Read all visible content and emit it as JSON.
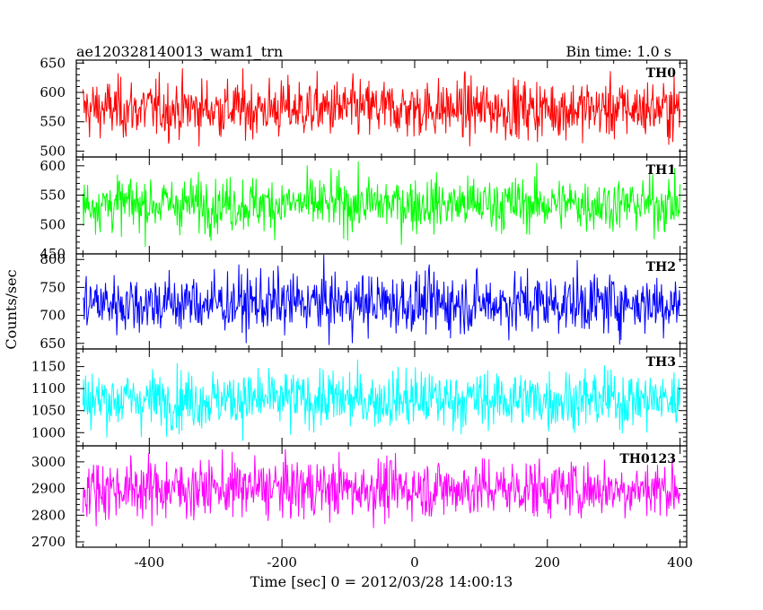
{
  "header": {
    "title": "ae120328140013_wam1_trn",
    "bin_time": "Bin time: 1.0 s"
  },
  "chart_data": {
    "type": "line",
    "xlabel": "Time [sec] 0 = 2012/03/28 14:00:13",
    "ylabel": "Counts/sec",
    "xlim": [
      -510,
      410
    ],
    "x_data_range": [
      -500,
      400
    ],
    "bin_time_s": 1.0,
    "xticks": [
      -400,
      -200,
      0,
      200,
      400
    ],
    "panels": [
      {
        "name": "TH0",
        "color": "#ff0000",
        "ylim": [
          490,
          655
        ],
        "yticks": [
          500,
          550,
          600,
          650
        ],
        "mean": 572,
        "noise_sd": 25,
        "approx_range": [
          500,
          655
        ]
      },
      {
        "name": "TH1",
        "color": "#00ff00",
        "ylim": [
          450,
          615
        ],
        "yticks": [
          450,
          500,
          550,
          600
        ],
        "mean": 535,
        "noise_sd": 23,
        "approx_range": [
          455,
          615
        ]
      },
      {
        "name": "TH2",
        "color": "#0000ff",
        "ylim": [
          640,
          810
        ],
        "yticks": [
          650,
          700,
          750,
          800
        ],
        "mean": 722,
        "noise_sd": 27,
        "approx_range": [
          645,
          810
        ]
      },
      {
        "name": "TH3",
        "color": "#00ffff",
        "ylim": [
          970,
          1190
        ],
        "yticks": [
          1000,
          1050,
          1100,
          1150
        ],
        "mean": 1075,
        "noise_sd": 33,
        "approx_range": [
          975,
          1190
        ]
      },
      {
        "name": "TH0123",
        "color": "#ff00ff",
        "ylim": [
          2680,
          3060
        ],
        "yticks": [
          2700,
          2800,
          2900,
          3000
        ],
        "mean": 2900,
        "noise_sd": 55,
        "approx_range": [
          2700,
          3060
        ]
      }
    ]
  }
}
